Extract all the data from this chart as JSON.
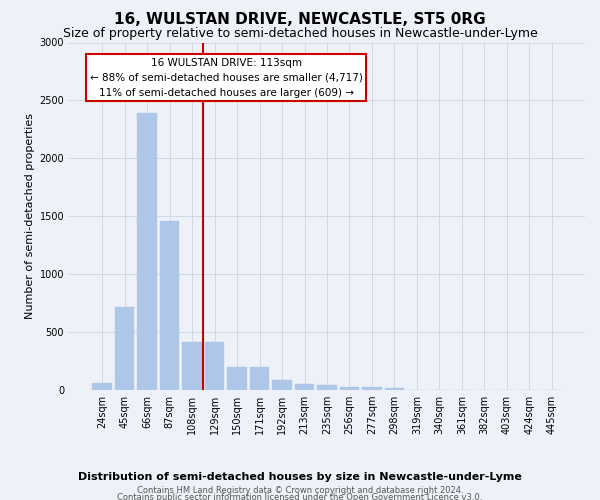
{
  "title": "16, WULSTAN DRIVE, NEWCASTLE, ST5 0RG",
  "subtitle": "Size of property relative to semi-detached houses in Newcastle-under-Lyme",
  "xlabel_bottom": "Distribution of semi-detached houses by size in Newcastle-under-Lyme",
  "ylabel": "Number of semi-detached properties",
  "footer_line1": "Contains HM Land Registry data © Crown copyright and database right 2024.",
  "footer_line2": "Contains public sector information licensed under the Open Government Licence v3.0.",
  "bin_labels": [
    "24sqm",
    "45sqm",
    "66sqm",
    "87sqm",
    "108sqm",
    "129sqm",
    "150sqm",
    "171sqm",
    "192sqm",
    "213sqm",
    "235sqm",
    "256sqm",
    "277sqm",
    "298sqm",
    "319sqm",
    "340sqm",
    "361sqm",
    "382sqm",
    "403sqm",
    "424sqm",
    "445sqm"
  ],
  "bar_values": [
    60,
    720,
    2390,
    1460,
    415,
    415,
    200,
    200,
    85,
    55,
    45,
    30,
    25,
    20,
    0,
    0,
    0,
    0,
    0,
    0,
    0
  ],
  "bar_color": "#aec6e8",
  "bar_edgecolor": "#aec6e8",
  "vline_color": "#cc0000",
  "vline_x_bin": 4,
  "annotation_line1": "16 WULSTAN DRIVE: 113sqm",
  "annotation_line2": "← 88% of semi-detached houses are smaller (4,717)",
  "annotation_line3": "11% of semi-detached houses are larger (609) →",
  "annotation_box_color": "#ffffff",
  "annotation_box_edge": "#cc0000",
  "ylim": [
    0,
    3000
  ],
  "yticks": [
    0,
    500,
    1000,
    1500,
    2000,
    2500,
    3000
  ],
  "grid_color": "#d0d8e8",
  "bg_color": "#eef2f8",
  "title_fontsize": 11,
  "subtitle_fontsize": 9,
  "axis_label_fontsize": 8,
  "tick_fontsize": 7,
  "footer_fontsize": 6,
  "xlabel_bottom_fontsize": 8
}
